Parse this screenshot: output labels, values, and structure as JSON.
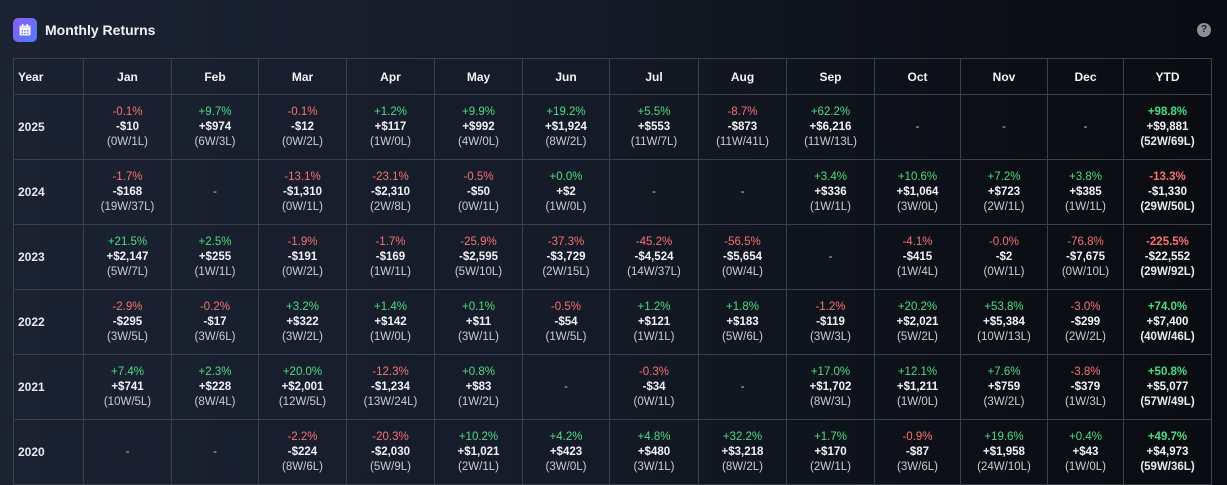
{
  "header": {
    "title": "Monthly Returns",
    "icon": "calendar-icon",
    "help_icon": "question-circle-icon",
    "help_label": "?"
  },
  "colors": {
    "positive": "#4ade80",
    "negative": "#f87171",
    "accent": "#8b5cf6"
  },
  "table": {
    "columns": [
      "Year",
      "Jan",
      "Feb",
      "Mar",
      "Apr",
      "May",
      "Jun",
      "Jul",
      "Aug",
      "Sep",
      "Oct",
      "Nov",
      "Dec",
      "YTD"
    ],
    "empty": "-",
    "rows": [
      {
        "year": "2025",
        "cells": [
          {
            "pct": "-0.1%",
            "pnl": "-$10",
            "wl": "(0W/1L)"
          },
          {
            "pct": "+9.7%",
            "pnl": "+$974",
            "wl": "(6W/3L)"
          },
          {
            "pct": "-0.1%",
            "pnl": "-$12",
            "wl": "(0W/2L)"
          },
          {
            "pct": "+1.2%",
            "pnl": "+$117",
            "wl": "(1W/0L)"
          },
          {
            "pct": "+9.9%",
            "pnl": "+$992",
            "wl": "(4W/0L)"
          },
          {
            "pct": "+19.2%",
            "pnl": "+$1,924",
            "wl": "(8W/2L)"
          },
          {
            "pct": "+5.5%",
            "pnl": "+$553",
            "wl": "(11W/7L)"
          },
          {
            "pct": "-8.7%",
            "pnl": "-$873",
            "wl": "(11W/41L)"
          },
          {
            "pct": "+62.2%",
            "pnl": "+$6,216",
            "wl": "(11W/13L)"
          },
          null,
          null,
          null
        ],
        "ytd": {
          "pct": "+98.8%",
          "pnl": "+$9,881",
          "wl": "(52W/69L)"
        }
      },
      {
        "year": "2024",
        "cells": [
          {
            "pct": "-1.7%",
            "pnl": "-$168",
            "wl": "(19W/37L)"
          },
          null,
          {
            "pct": "-13.1%",
            "pnl": "-$1,310",
            "wl": "(0W/1L)"
          },
          {
            "pct": "-23.1%",
            "pnl": "-$2,310",
            "wl": "(2W/8L)"
          },
          {
            "pct": "-0.5%",
            "pnl": "-$50",
            "wl": "(0W/1L)"
          },
          {
            "pct": "+0.0%",
            "pnl": "+$2",
            "wl": "(1W/0L)"
          },
          null,
          null,
          {
            "pct": "+3.4%",
            "pnl": "+$336",
            "wl": "(1W/1L)"
          },
          {
            "pct": "+10.6%",
            "pnl": "+$1,064",
            "wl": "(3W/0L)"
          },
          {
            "pct": "+7.2%",
            "pnl": "+$723",
            "wl": "(2W/1L)"
          },
          {
            "pct": "+3.8%",
            "pnl": "+$385",
            "wl": "(1W/1L)"
          }
        ],
        "ytd": {
          "pct": "-13.3%",
          "pnl": "-$1,330",
          "wl": "(29W/50L)"
        }
      },
      {
        "year": "2023",
        "cells": [
          {
            "pct": "+21.5%",
            "pnl": "+$2,147",
            "wl": "(5W/7L)"
          },
          {
            "pct": "+2.5%",
            "pnl": "+$255",
            "wl": "(1W/1L)"
          },
          {
            "pct": "-1.9%",
            "pnl": "-$191",
            "wl": "(0W/2L)"
          },
          {
            "pct": "-1.7%",
            "pnl": "-$169",
            "wl": "(1W/1L)"
          },
          {
            "pct": "-25.9%",
            "pnl": "-$2,595",
            "wl": "(5W/10L)"
          },
          {
            "pct": "-37.3%",
            "pnl": "-$3,729",
            "wl": "(2W/15L)"
          },
          {
            "pct": "-45.2%",
            "pnl": "-$4,524",
            "wl": "(14W/37L)"
          },
          {
            "pct": "-56.5%",
            "pnl": "-$5,654",
            "wl": "(0W/4L)"
          },
          null,
          {
            "pct": "-4.1%",
            "pnl": "-$415",
            "wl": "(1W/4L)"
          },
          {
            "pct": "-0.0%",
            "pnl": "-$2",
            "wl": "(0W/1L)"
          },
          {
            "pct": "-76.8%",
            "pnl": "-$7,675",
            "wl": "(0W/10L)"
          }
        ],
        "ytd": {
          "pct": "-225.5%",
          "pnl": "-$22,552",
          "wl": "(29W/92L)"
        }
      },
      {
        "year": "2022",
        "cells": [
          {
            "pct": "-2.9%",
            "pnl": "-$295",
            "wl": "(3W/5L)"
          },
          {
            "pct": "-0.2%",
            "pnl": "-$17",
            "wl": "(3W/6L)"
          },
          {
            "pct": "+3.2%",
            "pnl": "+$322",
            "wl": "(3W/2L)"
          },
          {
            "pct": "+1.4%",
            "pnl": "+$142",
            "wl": "(1W/0L)"
          },
          {
            "pct": "+0.1%",
            "pnl": "+$11",
            "wl": "(3W/1L)"
          },
          {
            "pct": "-0.5%",
            "pnl": "-$54",
            "wl": "(1W/5L)"
          },
          {
            "pct": "+1.2%",
            "pnl": "+$121",
            "wl": "(1W/1L)"
          },
          {
            "pct": "+1.8%",
            "pnl": "+$183",
            "wl": "(5W/6L)"
          },
          {
            "pct": "-1.2%",
            "pnl": "-$119",
            "wl": "(3W/3L)"
          },
          {
            "pct": "+20.2%",
            "pnl": "+$2,021",
            "wl": "(5W/2L)"
          },
          {
            "pct": "+53.8%",
            "pnl": "+$5,384",
            "wl": "(10W/13L)"
          },
          {
            "pct": "-3.0%",
            "pnl": "-$299",
            "wl": "(2W/2L)"
          }
        ],
        "ytd": {
          "pct": "+74.0%",
          "pnl": "+$7,400",
          "wl": "(40W/46L)"
        }
      },
      {
        "year": "2021",
        "cells": [
          {
            "pct": "+7.4%",
            "pnl": "+$741",
            "wl": "(10W/5L)"
          },
          {
            "pct": "+2.3%",
            "pnl": "+$228",
            "wl": "(8W/4L)"
          },
          {
            "pct": "+20.0%",
            "pnl": "+$2,001",
            "wl": "(12W/5L)"
          },
          {
            "pct": "-12.3%",
            "pnl": "-$1,234",
            "wl": "(13W/24L)"
          },
          {
            "pct": "+0.8%",
            "pnl": "+$83",
            "wl": "(1W/2L)"
          },
          null,
          {
            "pct": "-0.3%",
            "pnl": "-$34",
            "wl": "(0W/1L)"
          },
          null,
          {
            "pct": "+17.0%",
            "pnl": "+$1,702",
            "wl": "(8W/3L)"
          },
          {
            "pct": "+12.1%",
            "pnl": "+$1,211",
            "wl": "(1W/0L)"
          },
          {
            "pct": "+7.6%",
            "pnl": "+$759",
            "wl": "(3W/2L)"
          },
          {
            "pct": "-3.8%",
            "pnl": "-$379",
            "wl": "(1W/3L)"
          }
        ],
        "ytd": {
          "pct": "+50.8%",
          "pnl": "+$5,077",
          "wl": "(57W/49L)"
        }
      },
      {
        "year": "2020",
        "cells": [
          null,
          null,
          {
            "pct": "-2.2%",
            "pnl": "-$224",
            "wl": "(8W/6L)"
          },
          {
            "pct": "-20.3%",
            "pnl": "-$2,030",
            "wl": "(5W/9L)"
          },
          {
            "pct": "+10.2%",
            "pnl": "+$1,021",
            "wl": "(2W/1L)"
          },
          {
            "pct": "+4.2%",
            "pnl": "+$423",
            "wl": "(3W/0L)"
          },
          {
            "pct": "+4.8%",
            "pnl": "+$480",
            "wl": "(3W/1L)"
          },
          {
            "pct": "+32.2%",
            "pnl": "+$3,218",
            "wl": "(8W/2L)"
          },
          {
            "pct": "+1.7%",
            "pnl": "+$170",
            "wl": "(2W/1L)"
          },
          {
            "pct": "-0.9%",
            "pnl": "-$87",
            "wl": "(3W/6L)"
          },
          {
            "pct": "+19.6%",
            "pnl": "+$1,958",
            "wl": "(24W/10L)"
          },
          {
            "pct": "+0.4%",
            "pnl": "+$43",
            "wl": "(1W/0L)"
          }
        ],
        "ytd": {
          "pct": "+49.7%",
          "pnl": "+$4,973",
          "wl": "(59W/36L)"
        }
      }
    ]
  }
}
